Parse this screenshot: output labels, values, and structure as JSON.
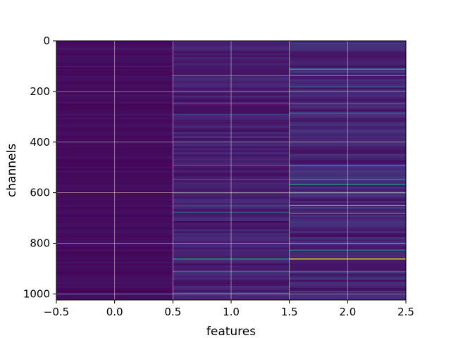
{
  "chart_data": {
    "type": "heatmap",
    "title": "",
    "xlabel": "features",
    "ylabel": "channels",
    "xlim": [
      -0.5,
      2.5
    ],
    "ylim": [
      1024,
      0
    ],
    "y_inverted": true,
    "x_ticks": [
      -0.5,
      0.0,
      0.5,
      1.0,
      1.5,
      2.0,
      2.5
    ],
    "x_tick_labels": [
      "−0.5",
      "0.0",
      "0.5",
      "1.0",
      "1.5",
      "2.0",
      "2.5"
    ],
    "y_ticks": [
      0,
      200,
      400,
      600,
      800,
      1000
    ],
    "y_tick_labels": [
      "0",
      "200",
      "400",
      "600",
      "800",
      "1000"
    ],
    "grid": true,
    "colormap": "viridis",
    "shape": {
      "rows": 1024,
      "columns": 3
    },
    "columns": [
      {
        "feature": 0,
        "base_level": 0.03,
        "highlights": [
          {
            "channel": 30,
            "value": 0.07
          },
          {
            "channel": 100,
            "value": 0.06
          },
          {
            "channel": 290,
            "value": 0.06
          },
          {
            "channel": 515,
            "value": 0.06
          },
          {
            "channel": 1000,
            "value": 0.06
          }
        ]
      },
      {
        "feature": 1,
        "base_level": 0.08,
        "highlights": [
          {
            "channel": 135,
            "value": 0.45
          },
          {
            "channel": 245,
            "value": 0.25
          },
          {
            "channel": 290,
            "value": 0.2
          },
          {
            "channel": 490,
            "value": 0.3
          },
          {
            "channel": 545,
            "value": 0.25
          },
          {
            "channel": 600,
            "value": 0.2
          },
          {
            "channel": 650,
            "value": 0.35
          },
          {
            "channel": 675,
            "value": 0.3
          },
          {
            "channel": 860,
            "value": 0.55
          },
          {
            "channel": 910,
            "value": 0.4
          },
          {
            "channel": 995,
            "value": 0.3
          }
        ]
      },
      {
        "feature": 2,
        "base_level": 0.1,
        "highlights": [
          {
            "channel": 10,
            "value": 0.3
          },
          {
            "channel": 110,
            "value": 0.6
          },
          {
            "channel": 135,
            "value": 0.55
          },
          {
            "channel": 180,
            "value": 0.3
          },
          {
            "channel": 245,
            "value": 0.35
          },
          {
            "channel": 285,
            "value": 0.3
          },
          {
            "channel": 490,
            "value": 0.5
          },
          {
            "channel": 545,
            "value": 0.45
          },
          {
            "channel": 565,
            "value": 0.55
          },
          {
            "channel": 600,
            "value": 0.4
          },
          {
            "channel": 648,
            "value": 0.75
          },
          {
            "channel": 680,
            "value": 0.55
          },
          {
            "channel": 825,
            "value": 0.45
          },
          {
            "channel": 860,
            "value": 0.95
          },
          {
            "channel": 910,
            "value": 0.35
          },
          {
            "channel": 990,
            "value": 0.3
          }
        ]
      }
    ]
  }
}
